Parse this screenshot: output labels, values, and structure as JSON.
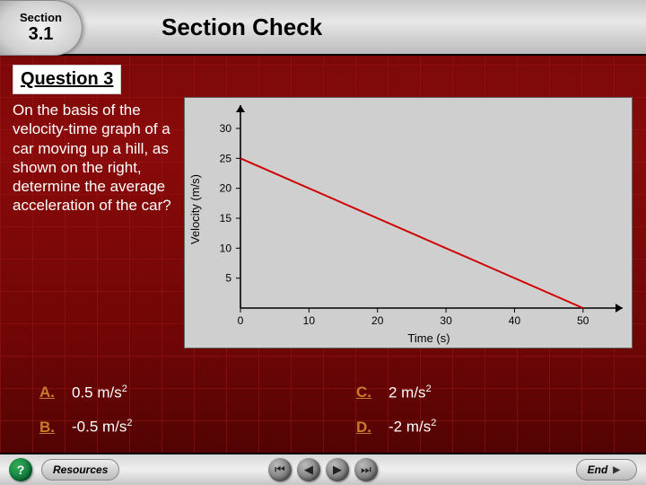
{
  "header": {
    "section_label": "Section",
    "section_number": "3.1",
    "title": "Section Check"
  },
  "question": {
    "label": "Question 3",
    "text": "On the basis of the velocity-time graph of a car moving up a hill, as shown on the right, determine the average acceleration of the car?"
  },
  "chart": {
    "type": "line",
    "xlabel": "Time (s)",
    "ylabel": "Velocity (m/s)",
    "xlim": [
      0,
      55
    ],
    "ylim": [
      0,
      33
    ],
    "xticks": [
      0,
      10,
      20,
      30,
      40,
      50
    ],
    "yticks": [
      5,
      10,
      15,
      20,
      25,
      30
    ],
    "line_points": [
      [
        0,
        25
      ],
      [
        50,
        0
      ]
    ],
    "line_color": "#d00000",
    "background_color": "#cfcfcf",
    "axis_color": "#000000",
    "label_fontsize": 13,
    "tick_fontsize": 12,
    "line_width": 2
  },
  "answers": [
    {
      "letter": "A.",
      "text": "0.5 m/s",
      "sup": "2"
    },
    {
      "letter": "B.",
      "text": "-0.5 m/s",
      "sup": "2"
    },
    {
      "letter": "C.",
      "text": "2 m/s",
      "sup": "2"
    },
    {
      "letter": "D.",
      "text": "-2 m/s",
      "sup": "2"
    }
  ],
  "footer": {
    "help": "?",
    "resources": "Resources",
    "end": "End"
  },
  "colors": {
    "answer_letter": "#c97c2a",
    "text_white": "#ffffff"
  }
}
